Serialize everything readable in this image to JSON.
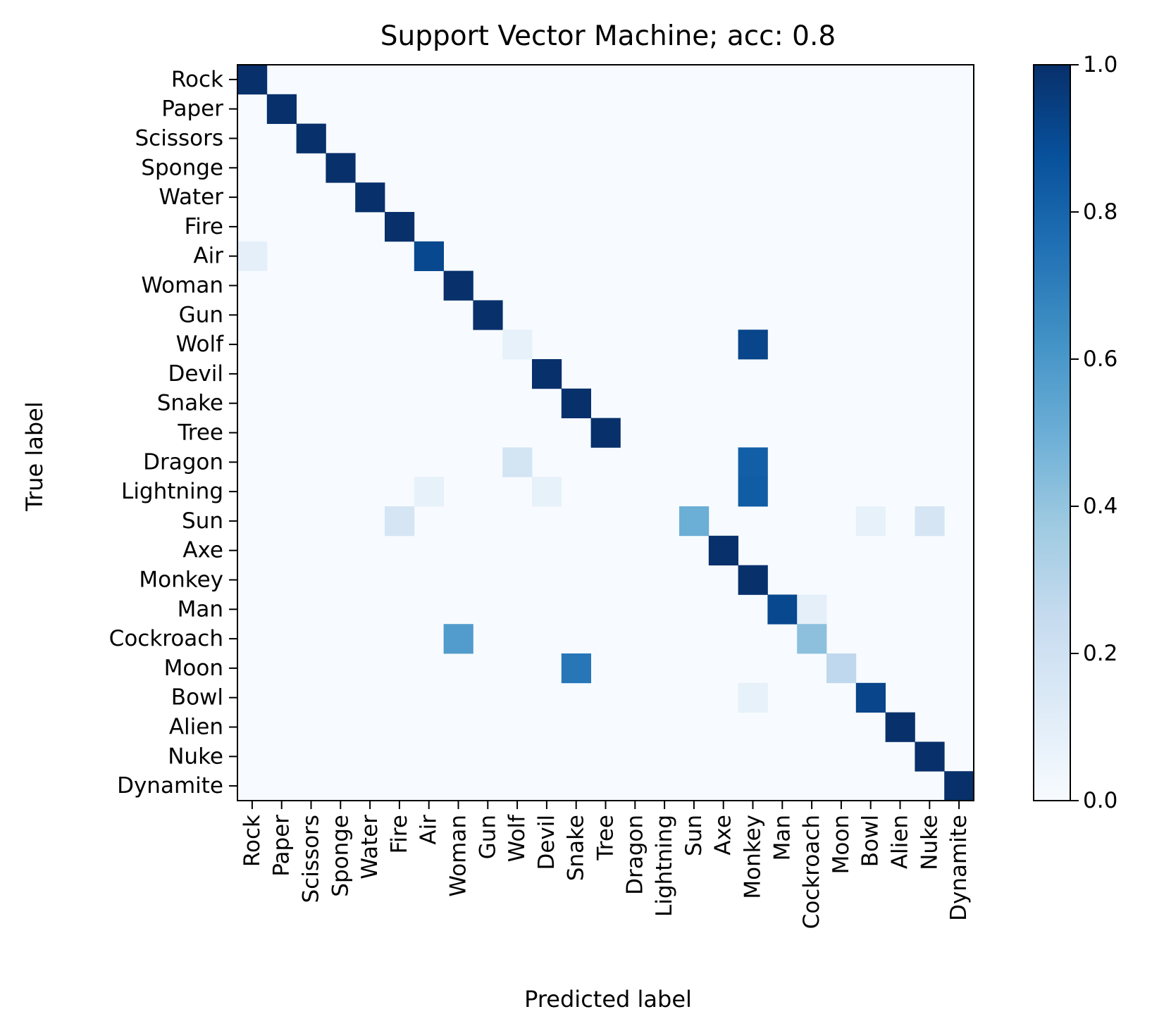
{
  "chart_data": {
    "type": "heatmap",
    "title": "Support Vector Machine; acc: 0.8",
    "xlabel": "Predicted label",
    "ylabel": "True label",
    "labels": [
      "Rock",
      "Paper",
      "Scissors",
      "Sponge",
      "Water",
      "Fire",
      "Air",
      "Woman",
      "Gun",
      "Wolf",
      "Devil",
      "Snake",
      "Tree",
      "Dragon",
      "Lightning",
      "Sun",
      "Axe",
      "Monkey",
      "Man",
      "Cockroach",
      "Moon",
      "Bowl",
      "Alien",
      "Nuke",
      "Dynamite"
    ],
    "colormap": "Blues",
    "vmin": 0.0,
    "vmax": 1.0,
    "colorbar_ticks": [
      "0.0",
      "0.2",
      "0.4",
      "0.6",
      "0.8",
      "1.0"
    ],
    "cells": [
      {
        "row": 0,
        "col": 0,
        "value": 1.0
      },
      {
        "row": 1,
        "col": 1,
        "value": 1.0
      },
      {
        "row": 2,
        "col": 2,
        "value": 1.0
      },
      {
        "row": 3,
        "col": 3,
        "value": 1.0
      },
      {
        "row": 4,
        "col": 4,
        "value": 1.0
      },
      {
        "row": 5,
        "col": 5,
        "value": 1.0
      },
      {
        "row": 6,
        "col": 0,
        "value": 0.09
      },
      {
        "row": 6,
        "col": 6,
        "value": 0.91
      },
      {
        "row": 7,
        "col": 7,
        "value": 1.0
      },
      {
        "row": 8,
        "col": 8,
        "value": 1.0
      },
      {
        "row": 9,
        "col": 9,
        "value": 0.08
      },
      {
        "row": 9,
        "col": 17,
        "value": 0.92
      },
      {
        "row": 10,
        "col": 10,
        "value": 1.0
      },
      {
        "row": 11,
        "col": 11,
        "value": 1.0
      },
      {
        "row": 12,
        "col": 12,
        "value": 1.0
      },
      {
        "row": 13,
        "col": 9,
        "value": 0.18
      },
      {
        "row": 13,
        "col": 17,
        "value": 0.82
      },
      {
        "row": 14,
        "col": 6,
        "value": 0.08
      },
      {
        "row": 14,
        "col": 10,
        "value": 0.08
      },
      {
        "row": 14,
        "col": 17,
        "value": 0.83
      },
      {
        "row": 15,
        "col": 5,
        "value": 0.17
      },
      {
        "row": 15,
        "col": 15,
        "value": 0.5
      },
      {
        "row": 15,
        "col": 21,
        "value": 0.08
      },
      {
        "row": 15,
        "col": 23,
        "value": 0.17
      },
      {
        "row": 16,
        "col": 16,
        "value": 1.0
      },
      {
        "row": 17,
        "col": 17,
        "value": 1.0
      },
      {
        "row": 18,
        "col": 18,
        "value": 0.91
      },
      {
        "row": 18,
        "col": 19,
        "value": 0.09
      },
      {
        "row": 19,
        "col": 7,
        "value": 0.58
      },
      {
        "row": 19,
        "col": 19,
        "value": 0.42
      },
      {
        "row": 20,
        "col": 11,
        "value": 0.73
      },
      {
        "row": 20,
        "col": 20,
        "value": 0.27
      },
      {
        "row": 21,
        "col": 17,
        "value": 0.08
      },
      {
        "row": 21,
        "col": 21,
        "value": 0.92
      },
      {
        "row": 22,
        "col": 22,
        "value": 1.0
      },
      {
        "row": 23,
        "col": 23,
        "value": 1.0
      },
      {
        "row": 24,
        "col": 24,
        "value": 1.0
      }
    ]
  }
}
